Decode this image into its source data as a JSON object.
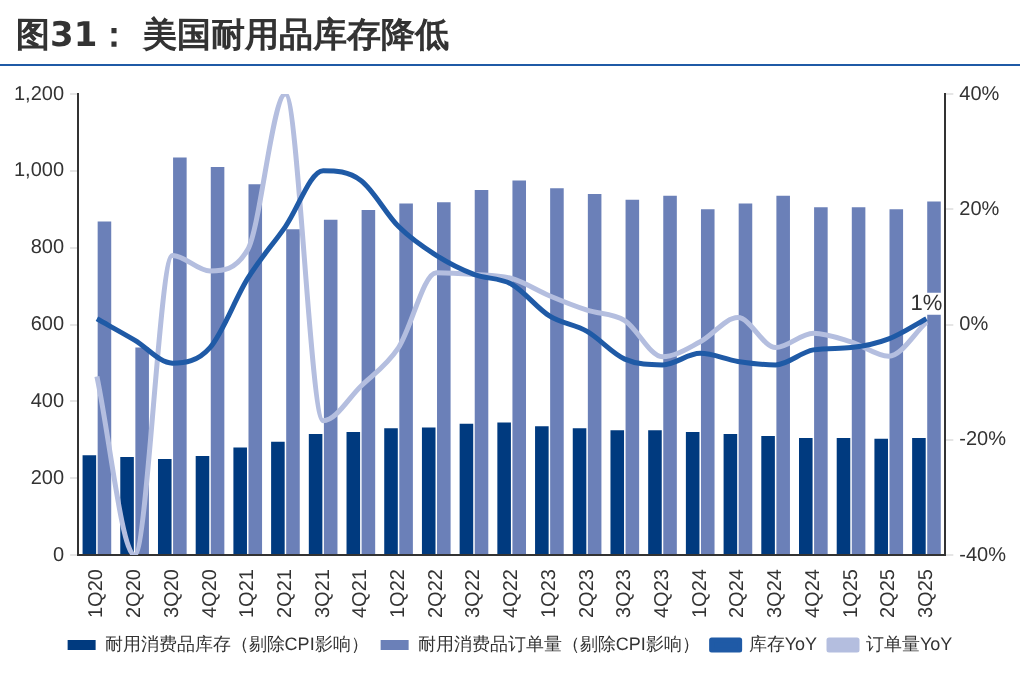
{
  "chart_data": {
    "type": "bar",
    "title": "图31：  美国耐用品库存降低",
    "categories": [
      "1Q20",
      "2Q20",
      "3Q20",
      "4Q20",
      "1Q21",
      "2Q21",
      "3Q21",
      "4Q21",
      "1Q22",
      "2Q22",
      "3Q22",
      "4Q22",
      "1Q23",
      "2Q23",
      "3Q23",
      "4Q23",
      "1Q24",
      "2Q24",
      "3Q24",
      "4Q24",
      "1Q25",
      "2Q25",
      "3Q25"
    ],
    "series": [
      {
        "name": "耐用消费品库存（剔除CPI影响）",
        "color": "#003a7f",
        "values": [
          260,
          255,
          250,
          258,
          280,
          295,
          315,
          320,
          330,
          332,
          342,
          345,
          335,
          330,
          325,
          325,
          320,
          315,
          310,
          305,
          305,
          303,
          305
        ]
      },
      {
        "name": "耐用消费品订单量（剔除CPI影响）",
        "color": "#6b80b8",
        "values": [
          868,
          540,
          1035,
          1010,
          965,
          848,
          873,
          898,
          915,
          918,
          950,
          975,
          955,
          940,
          925,
          935,
          900,
          915,
          935,
          905,
          905,
          900,
          920
        ]
      },
      {
        "name": "库存YoY",
        "type": "line",
        "axis": "y2",
        "color": "#1f5aa6",
        "values": [
          1,
          -2.7,
          -6.7,
          -4,
          8,
          17,
          26.7,
          25,
          17,
          12,
          8.7,
          7,
          1.5,
          -1.2,
          -6,
          -7,
          -5,
          -6.4,
          -7,
          -4.4,
          -4,
          -2.5,
          1
        ]
      },
      {
        "name": "订单量YoY",
        "type": "line",
        "axis": "y2",
        "color": "#b4bedf",
        "values": [
          -9,
          -40,
          12,
          9.3,
          13,
          40,
          -16.7,
          -10.7,
          -4,
          9,
          8.7,
          8,
          5,
          2.5,
          0.7,
          -5.6,
          -3,
          1.2,
          -4,
          -1.5,
          -3,
          -5.5,
          0.4
        ]
      }
    ],
    "ylim": [
      0,
      1200
    ],
    "yticks": [
      {
        "value": 0,
        "label": "0"
      },
      {
        "value": 200,
        "label": "200"
      },
      {
        "value": 400,
        "label": "400"
      },
      {
        "value": 600,
        "label": "600"
      },
      {
        "value": 800,
        "label": "800"
      },
      {
        "value": 1000,
        "label": "1,000"
      },
      {
        "value": 1200,
        "label": "1,200"
      }
    ],
    "y2lim": [
      -40,
      40
    ],
    "y2ticks": [
      {
        "value": -40,
        "label": "-40%"
      },
      {
        "value": -20,
        "label": "-20%"
      },
      {
        "value": 0,
        "label": "0%"
      },
      {
        "value": 20,
        "label": "20%"
      },
      {
        "value": 40,
        "label": "40%"
      }
    ],
    "annotations": [
      "1%"
    ],
    "legend": "bottom",
    "grid": false
  }
}
